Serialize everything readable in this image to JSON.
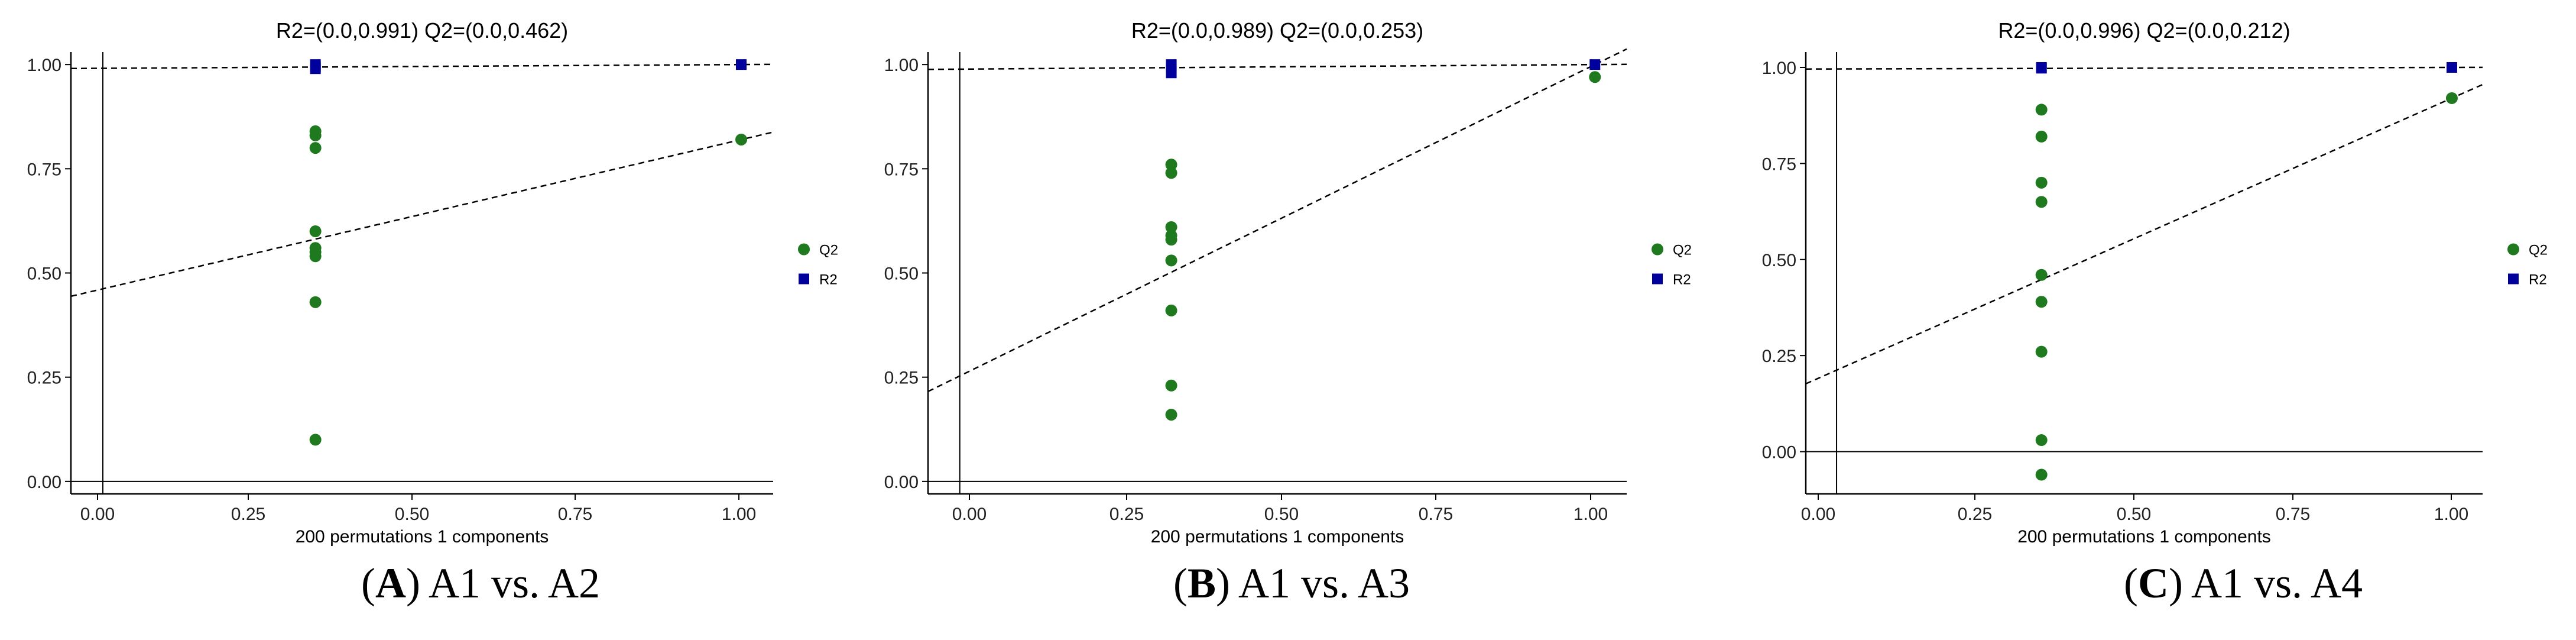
{
  "colors": {
    "q2": "#1f7a1f",
    "r2": "#00009c",
    "axis": "#000000"
  },
  "chart_data": [
    {
      "type": "scatter",
      "title": "R2=(0.0,0.991)   Q2=(0.0,0.462)",
      "xlabel": "200 permutations 1 components",
      "xlim": [
        -0.05,
        1.05
      ],
      "ylim": [
        -0.03,
        1.03
      ],
      "xticks": [
        "0.00",
        "0.25",
        "0.50",
        "0.75",
        "1.00"
      ],
      "yticks": [
        "0.00",
        "0.25",
        "0.50",
        "0.75",
        "1.00"
      ],
      "legend": [
        "Q2",
        "R2"
      ],
      "series": [
        {
          "name": "Q2",
          "marker": "circle",
          "points": [
            [
              0.333,
              0.84
            ],
            [
              0.333,
              0.83
            ],
            [
              0.333,
              0.8
            ],
            [
              0.333,
              0.6
            ],
            [
              0.333,
              0.56
            ],
            [
              0.333,
              0.55
            ],
            [
              0.333,
              0.54
            ],
            [
              0.333,
              0.43
            ],
            [
              0.333,
              0.1
            ],
            [
              1.0,
              0.82
            ]
          ]
        },
        {
          "name": "R2",
          "marker": "square",
          "points": [
            [
              0.333,
              1.0
            ],
            [
              0.333,
              0.995
            ],
            [
              0.333,
              0.99
            ],
            [
              1.0,
              1.0
            ]
          ]
        }
      ],
      "lines": [
        {
          "name": "R2",
          "intercept": 0.991,
          "slope": 0.009
        },
        {
          "name": "Q2",
          "intercept": 0.462,
          "slope": 0.358
        }
      ],
      "caption_letter": "A",
      "caption_text": ") A1 vs. A2"
    },
    {
      "type": "scatter",
      "title": "R2=(0.0,0.989)   Q2=(0.0,0.253)",
      "xlabel": "200 permutations 1 components",
      "xlim": [
        -0.05,
        1.05
      ],
      "ylim": [
        -0.03,
        1.03
      ],
      "xticks": [
        "0.00",
        "0.25",
        "0.50",
        "0.75",
        "1.00"
      ],
      "yticks": [
        "0.00",
        "0.25",
        "0.50",
        "0.75",
        "1.00"
      ],
      "legend": [
        "Q2",
        "R2"
      ],
      "series": [
        {
          "name": "Q2",
          "marker": "circle",
          "points": [
            [
              0.333,
              0.76
            ],
            [
              0.333,
              0.74
            ],
            [
              0.333,
              0.61
            ],
            [
              0.333,
              0.59
            ],
            [
              0.333,
              0.58
            ],
            [
              0.333,
              0.53
            ],
            [
              0.333,
              0.41
            ],
            [
              0.333,
              0.23
            ],
            [
              0.333,
              0.16
            ],
            [
              1.0,
              0.97
            ]
          ]
        },
        {
          "name": "R2",
          "marker": "square",
          "points": [
            [
              0.333,
              1.0
            ],
            [
              0.333,
              0.99
            ],
            [
              0.333,
              0.98
            ],
            [
              1.0,
              1.0
            ]
          ]
        }
      ],
      "lines": [
        {
          "name": "R2",
          "intercept": 0.989,
          "slope": 0.011
        },
        {
          "name": "Q2",
          "intercept": 0.253,
          "slope": 0.747
        }
      ],
      "caption_letter": "B",
      "caption_text": ") A1 vs. A3"
    },
    {
      "type": "scatter",
      "title": "R2=(0.0,0.996)   Q2=(0.0,0.212)",
      "xlabel": "200 permutations 1 components",
      "xlim": [
        -0.05,
        1.05
      ],
      "ylim": [
        -0.11,
        1.04
      ],
      "xticks": [
        "0.00",
        "0.25",
        "0.50",
        "0.75",
        "1.00"
      ],
      "yticks": [
        "0.00",
        "0.25",
        "0.50",
        "0.75",
        "1.00"
      ],
      "legend": [
        "Q2",
        "R2"
      ],
      "series": [
        {
          "name": "Q2",
          "marker": "circle",
          "points": [
            [
              0.333,
              0.89
            ],
            [
              0.333,
              0.82
            ],
            [
              0.333,
              0.7
            ],
            [
              0.333,
              0.65
            ],
            [
              0.333,
              0.46
            ],
            [
              0.333,
              0.39
            ],
            [
              0.333,
              0.26
            ],
            [
              0.333,
              0.03
            ],
            [
              0.333,
              -0.06
            ],
            [
              1.0,
              0.92
            ]
          ]
        },
        {
          "name": "R2",
          "marker": "square",
          "points": [
            [
              0.333,
              1.0
            ],
            [
              0.333,
              0.998
            ],
            [
              1.0,
              1.0
            ]
          ]
        }
      ],
      "lines": [
        {
          "name": "R2",
          "intercept": 0.996,
          "slope": 0.004
        },
        {
          "name": "Q2",
          "intercept": 0.212,
          "slope": 0.708
        }
      ],
      "caption_letter": "C",
      "caption_text": ") A1 vs. A4"
    }
  ]
}
